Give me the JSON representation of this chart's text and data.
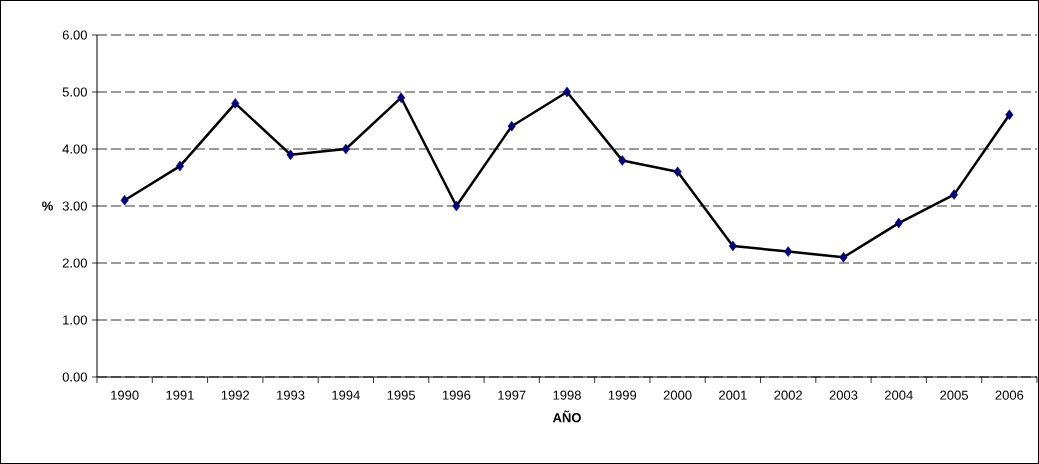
{
  "chart_data": {
    "type": "line",
    "xlabel": "AÑO",
    "ylabel": "%",
    "categories": [
      "1990",
      "1991",
      "1992",
      "1993",
      "1994",
      "1995",
      "1996",
      "1997",
      "1998",
      "1999",
      "2000",
      "2001",
      "2002",
      "2003",
      "2004",
      "2005",
      "2006"
    ],
    "series": [
      {
        "color": "#000080",
        "values": [
          3.1,
          3.7,
          4.8,
          3.9,
          4.0,
          4.9,
          3.0,
          4.4,
          5.0,
          3.8,
          3.6,
          2.3,
          2.2,
          2.1,
          2.7,
          3.2,
          4.6
        ]
      }
    ],
    "ylim": [
      0,
      6
    ],
    "yticks": [
      {
        "value": 0,
        "label": "0.00"
      },
      {
        "value": 1,
        "label": "1.00"
      },
      {
        "value": 2,
        "label": "2.00"
      },
      {
        "value": 3,
        "label": "3.00"
      },
      {
        "value": 4,
        "label": "4.00"
      },
      {
        "value": 5,
        "label": "5.00"
      },
      {
        "value": 6,
        "label": "6.00"
      }
    ],
    "grid": "y",
    "marker": "diamond",
    "line_style": "solid"
  }
}
